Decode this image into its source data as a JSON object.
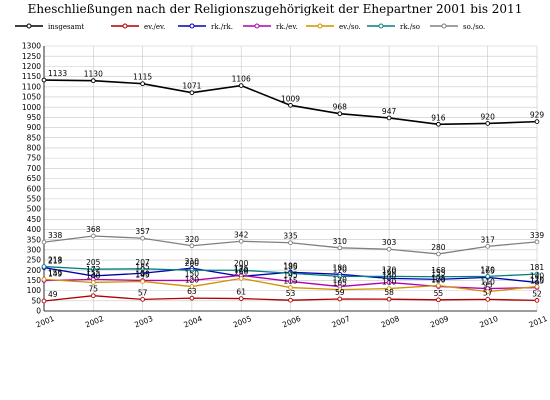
{
  "chart_data": {
    "type": "line",
    "title": "Eheschließungen nach der Religionszugehörigkeit der Ehepartner 2001 bis 2011",
    "xlabel": "",
    "ylabel": "",
    "x": [
      "2001",
      "2002",
      "2003",
      "2004",
      "2005",
      "2006",
      "2007",
      "2008",
      "2009",
      "2010",
      "2011"
    ],
    "ylim": [
      0,
      1300
    ],
    "yticks": [
      0,
      50,
      100,
      150,
      200,
      250,
      300,
      350,
      400,
      450,
      500,
      550,
      600,
      650,
      700,
      750,
      800,
      850,
      900,
      950,
      1000,
      1050,
      1100,
      1150,
      1200,
      1250,
      1300
    ],
    "grid": true,
    "legend_position": "top",
    "series": [
      {
        "name": "insgesamt",
        "color": "#000000",
        "values": [
          1133,
          1130,
          1115,
          1071,
          1106,
          1009,
          968,
          947,
          916,
          920,
          929
        ],
        "labels": [
          "1133",
          "1130",
          "1115",
          "1071",
          "1106",
          "1009",
          "968",
          "947",
          "916",
          "920",
          "929"
        ]
      },
      {
        "name": "ev./ev.",
        "color": "#b00000",
        "values": [
          49,
          75,
          57,
          63,
          61,
          53,
          59,
          58,
          55,
          57,
          52
        ],
        "labels": [
          "49",
          "75",
          "57",
          "63",
          "61",
          "53",
          "59",
          "58",
          "55",
          "57",
          "52"
        ]
      },
      {
        "name": "rk./rk.",
        "color": "#0000b0",
        "values": [
          213,
          172,
          185,
          210,
          170,
          190,
          180,
          160,
          155,
          165,
          140
        ],
        "labels": [
          "213",
          "172",
          "185",
          "210",
          "170",
          "190",
          "180",
          "160",
          "155",
          "165",
          "140"
        ]
      },
      {
        "name": "rk./ev.",
        "color": "#b000b0",
        "values": [
          149,
          155,
          150,
          150,
          175,
          145,
          120,
          140,
          120,
          110,
          115
        ],
        "labels": [
          "149",
          "155",
          "150",
          "150",
          "175",
          "145",
          "120",
          "140",
          "120",
          "110",
          "115"
        ]
      },
      {
        "name": "ev./so.",
        "color": "#d09000",
        "values": [
          155,
          140,
          145,
          120,
          160,
          115,
          105,
          110,
          125,
          95,
          120
        ],
        "labels": [
          "155",
          "140",
          "145",
          "120",
          "160",
          "115",
          "105",
          "110",
          "125",
          "95",
          "120"
        ]
      },
      {
        "name": "rk./so",
        "color": "#008080",
        "values": [
          218,
          205,
          207,
          200,
          200,
          185,
          170,
          170,
          168,
          170,
          181
        ],
        "labels": [
          "218",
          "205",
          "207",
          "200",
          "200",
          "185",
          "170",
          "170",
          "168",
          "170",
          "181"
        ]
      },
      {
        "name": "so./so.",
        "color": "#808080",
        "values": [
          338,
          368,
          357,
          320,
          342,
          335,
          310,
          303,
          280,
          317,
          339
        ],
        "labels": [
          "338",
          "368",
          "357",
          "320",
          "342",
          "335",
          "310",
          "303",
          "280",
          "317",
          "339"
        ]
      }
    ]
  }
}
